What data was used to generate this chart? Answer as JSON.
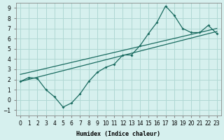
{
  "xlabel": "Humidex (Indice chaleur)",
  "ylabel": "",
  "bg_color": "#d6f0ee",
  "grid_color": "#b0d8d4",
  "line_color": "#1a6b60",
  "xlim": [
    -0.5,
    23.5
  ],
  "ylim": [
    -1.5,
    9.5
  ],
  "xticks": [
    0,
    1,
    2,
    3,
    4,
    5,
    6,
    7,
    8,
    9,
    10,
    11,
    12,
    13,
    14,
    15,
    16,
    17,
    18,
    19,
    20,
    21,
    22,
    23
  ],
  "yticks": [
    -1,
    0,
    1,
    2,
    3,
    4,
    5,
    6,
    7,
    8,
    9
  ],
  "series1_x": [
    0,
    1,
    2,
    3,
    4,
    5,
    6,
    7,
    8,
    9,
    10,
    11,
    12,
    13,
    14,
    15,
    16,
    17,
    18,
    19,
    20,
    21,
    22,
    23
  ],
  "series1_y": [
    1.8,
    2.2,
    2.1,
    1.0,
    0.3,
    -0.7,
    -0.3,
    0.6,
    1.8,
    2.7,
    3.2,
    3.5,
    4.4,
    4.4,
    5.3,
    6.5,
    7.6,
    9.2,
    8.3,
    7.0,
    6.6,
    6.6,
    7.3,
    6.5
  ],
  "series2_x": [
    0,
    23
  ],
  "series2_y": [
    1.8,
    6.7
  ],
  "series3_x": [
    0,
    23
  ],
  "series3_y": [
    2.5,
    7.0
  ]
}
